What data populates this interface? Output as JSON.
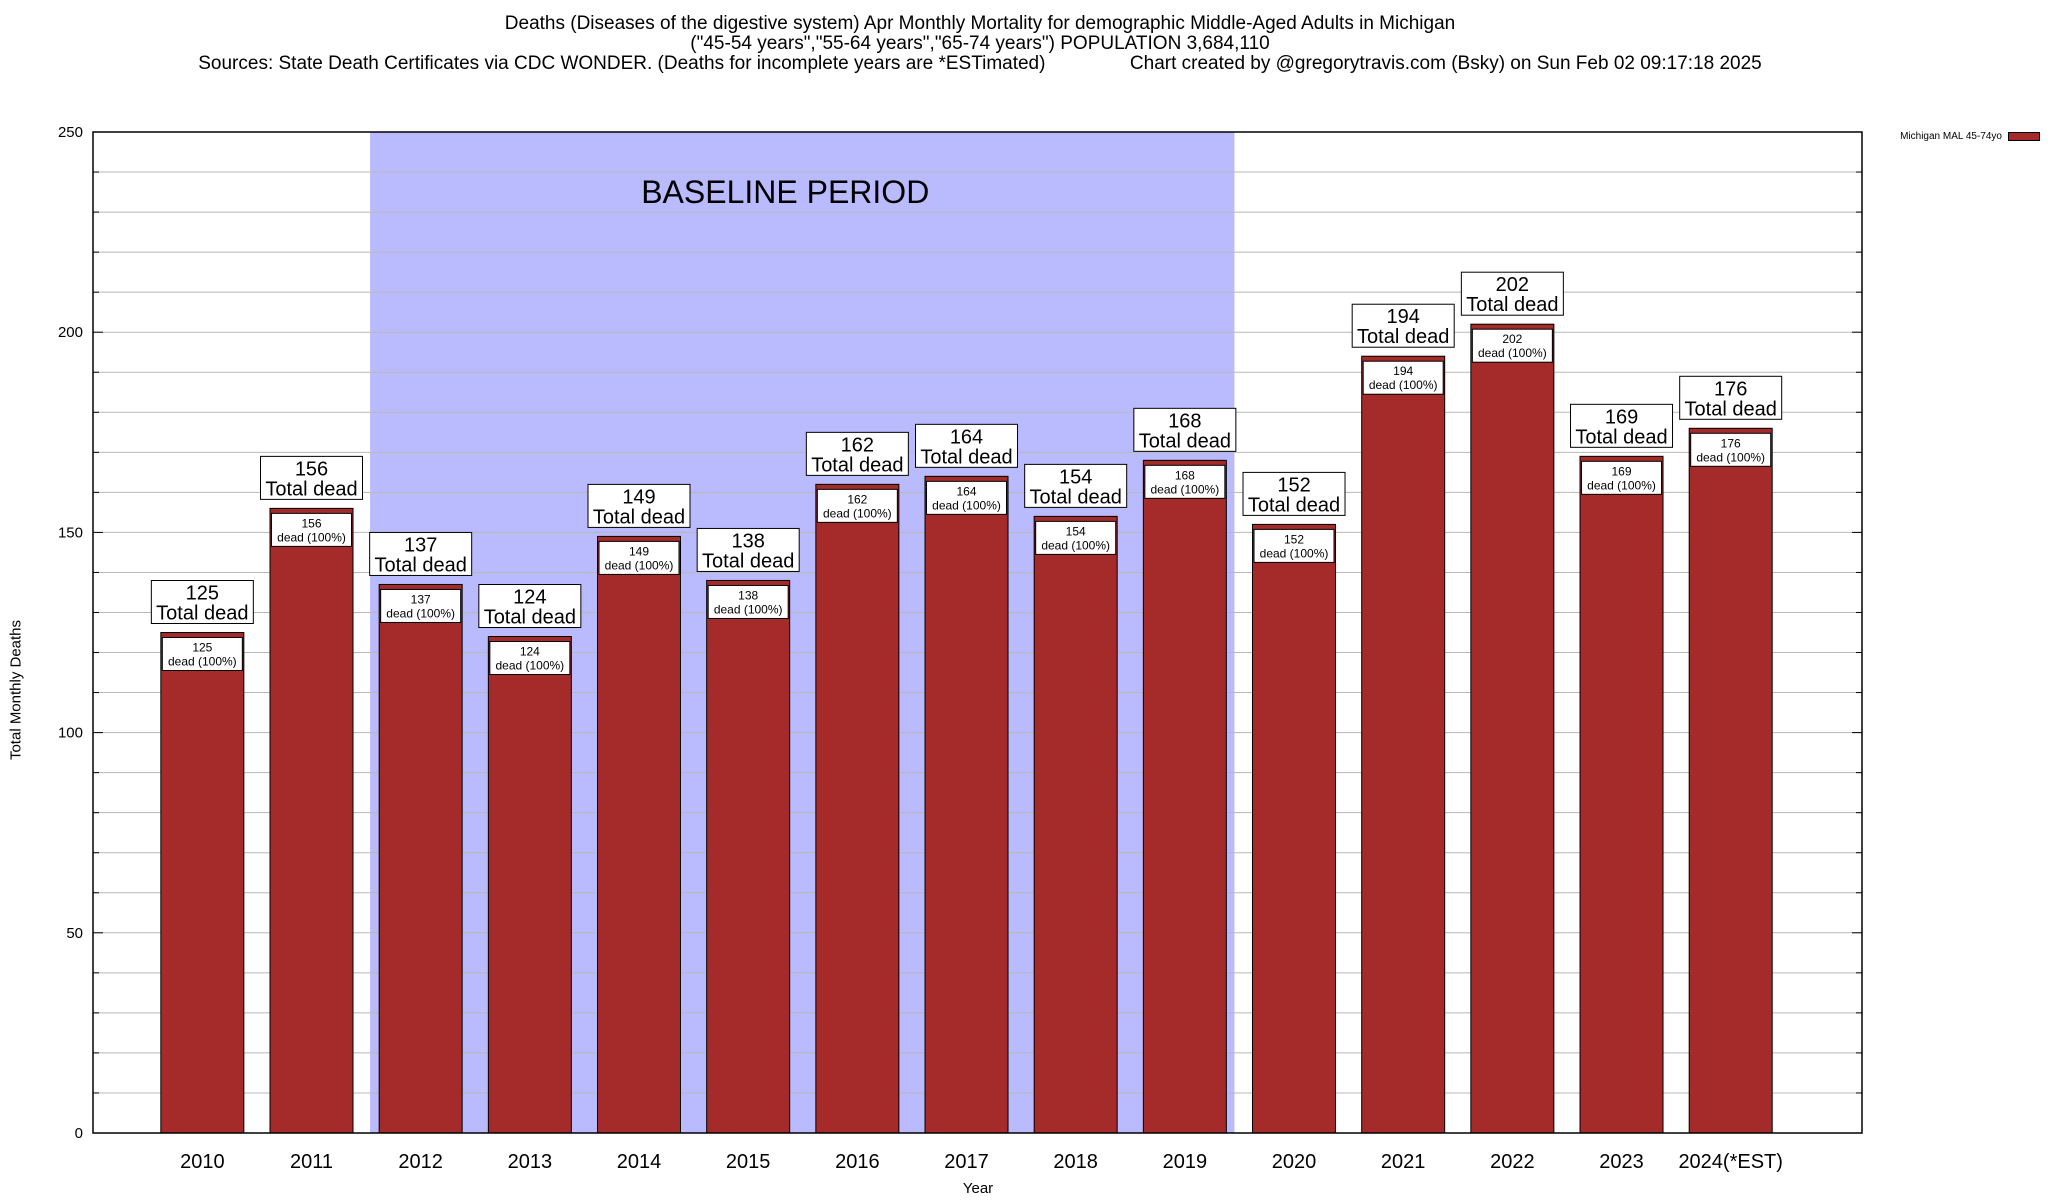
{
  "title": {
    "line1": "Deaths (Diseases of the digestive system) Apr Monthly Mortality for demographic Middle-Aged Adults in Michigan",
    "line2": "(\"45-54 years\",\"55-64 years\",\"65-74 years\") POPULATION 3,684,110",
    "line3": "Sources: State Death Certificates via CDC WONDER. (Deaths for incomplete years are *ESTimated)                Chart created by @gregorytravis.com (Bsky) on Sun Feb 02 09:17:18 2025"
  },
  "chart_data": {
    "type": "bar",
    "xlabel": "Year",
    "ylabel": "Total Monthly Deaths",
    "ylim": [
      0,
      250
    ],
    "yticks": [
      0,
      50,
      100,
      150,
      200,
      250
    ],
    "grid": true,
    "legend_position": "top-right",
    "categories": [
      "2010",
      "2011",
      "2012",
      "2013",
      "2014",
      "2015",
      "2016",
      "2017",
      "2018",
      "2019",
      "2020",
      "2021",
      "2022",
      "2023",
      "2024(*EST)"
    ],
    "series": [
      {
        "name": "Michigan MAL 45-74yo",
        "color": "#a52a2a",
        "values": [
          125,
          156,
          137,
          124,
          149,
          138,
          162,
          164,
          154,
          168,
          152,
          194,
          202,
          169,
          176
        ]
      }
    ],
    "top_label_suffix": "Total dead",
    "inner_label_suffix": "dead (100%)",
    "annotation": {
      "text": "BASELINE PERIOD",
      "span_start": "2012",
      "span_end": "2019",
      "color": "#babaff"
    }
  }
}
